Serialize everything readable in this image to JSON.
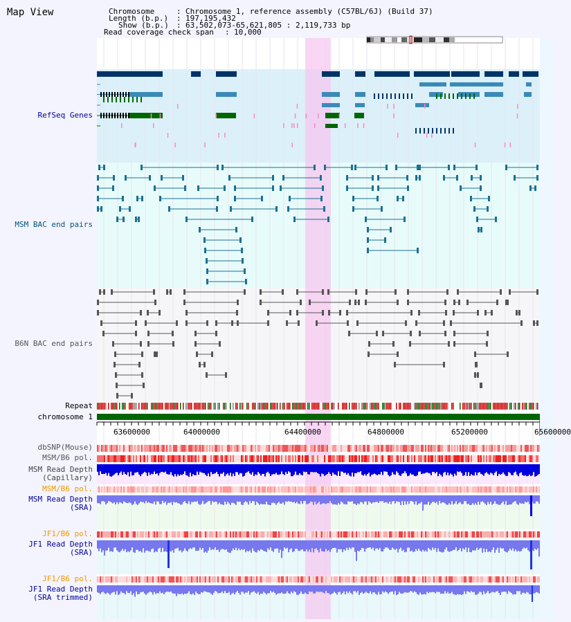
{
  "app_title": "Map View",
  "info": {
    "chromosome_label": "Chromosome",
    "chromosome_value": "Chromosome 1, reference assembly (C57BL/6J) (Build 37)",
    "length_label": "Length (b.p.)",
    "length_value": "197,195,432",
    "show_label": "Show (b.p.)",
    "show_value": "63,502,073-65,621,805 : 2,119,733 bp",
    "read_label": "Read coverage check span",
    "read_value": "10,000"
  },
  "tracks": {
    "refseq": "RefSeq Genes",
    "msm_bac": "MSM BAC end pairs",
    "b6n_bac": "B6N BAC end pairs",
    "repeat": "Repeat",
    "chromosome": "chromosome 1",
    "dbsnp": "dbSNP(Mouse)",
    "msm_b6_pol_1": "MSM/B6 pol.",
    "msm_depth_cap_1": "MSM Read Depth",
    "msm_depth_cap_2": "(Capillary)",
    "msm_b6_pol_2": "MSM/B6 pol.",
    "msm_depth_sra_1": "MSM Read Depth",
    "msm_depth_sra_2": "(SRA)",
    "jf1_b6_pol_1": "JF1/B6 pol.",
    "jf1_depth_sra_1": "JF1 Read Depth",
    "jf1_depth_sra_2": "(SRA)",
    "jf1_b6_pol_2": "JF1/B6 pol.",
    "jf1_depth_trim_1": "JF1 Read Depth",
    "jf1_depth_trim_2": "(SRA trimmed)"
  },
  "axis": {
    "ticks": [
      "63600000",
      "64000000",
      "64400000",
      "64800000",
      "65200000",
      "65600000"
    ]
  },
  "colors": {
    "gene_dark": "#003366",
    "gene_mid": "#3a8ab8",
    "gene_green": "#006600",
    "bac_msm": "#1a7090",
    "bac_b6n": "#555555",
    "repeat": "#cc0000",
    "chrom": "#006600",
    "highlight": "#f6c8f0",
    "label_blue": "#000099",
    "label_teal": "#005577",
    "label_orange": "#ee9900",
    "depth_blue": "#0000dd",
    "depth_light": "#7777ee"
  }
}
